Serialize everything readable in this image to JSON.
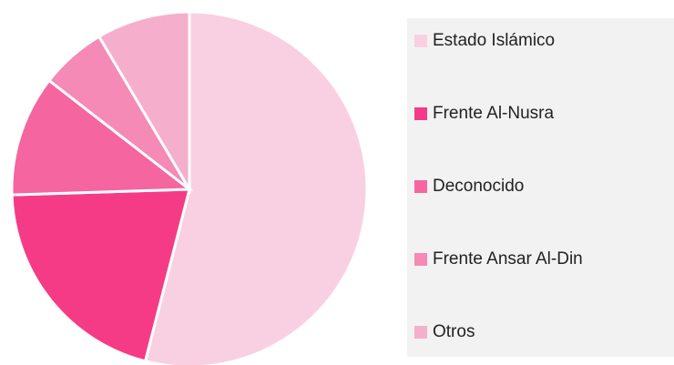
{
  "chart_data": {
    "type": "pie",
    "categories": [
      "Estado Islámico",
      "Frente Al-Nusra",
      "Deconocido",
      "Frente Ansar Al-Din",
      "Otros"
    ],
    "values": [
      54,
      20.5,
      11,
      6,
      8.5
    ],
    "colors": [
      "#f9d0e2",
      "#f63b86",
      "#f5659f",
      "#f48ab5",
      "#f5afcc"
    ],
    "legend": "right"
  }
}
